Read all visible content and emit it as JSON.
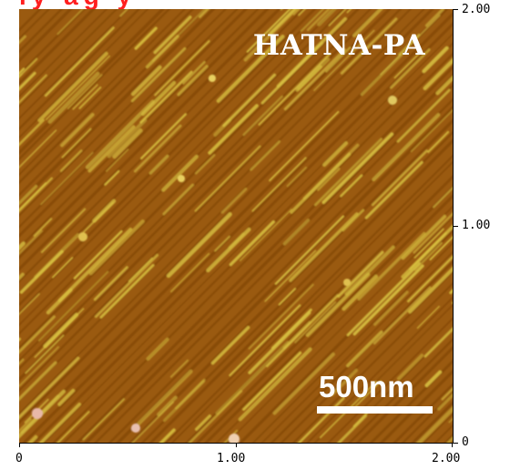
{
  "image": {
    "sample_label": "HATNA-PA",
    "scale_bar_text": "500nm",
    "cropped_caption": "ly ag     y"
  },
  "axes": {
    "x_ticks": [
      "0",
      "1.00",
      "2.00"
    ],
    "y_ticks": [
      "2.00",
      "1.00",
      "0"
    ]
  },
  "colors": {
    "substrate": "#9a5a10",
    "fibers": "#d8c040",
    "label": "#ffffff",
    "caption": "#ff1f1f"
  }
}
